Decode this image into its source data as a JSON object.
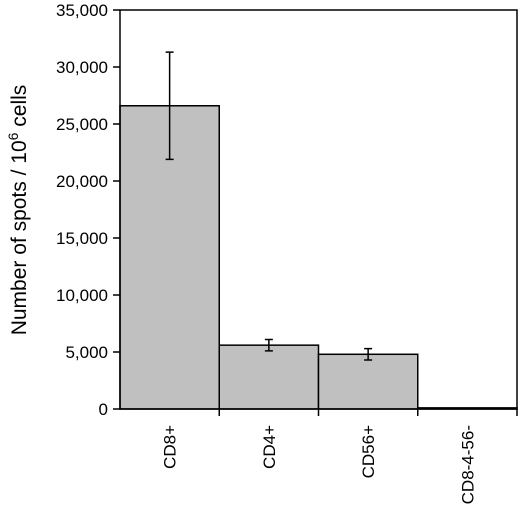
{
  "chart_data": {
    "type": "bar",
    "y_label": [
      "Number of spots / 10",
      "6",
      " cells"
    ],
    "categories": [
      "CD8+",
      "CD4+",
      "CD56+",
      "CD8-4-56-"
    ],
    "values": [
      26600,
      5600,
      4800,
      100
    ],
    "errors": [
      4700,
      500,
      500,
      null
    ],
    "color": "#c0c0c0",
    "ylim": [
      0,
      35000
    ],
    "yticks": [
      0,
      {
        "value": 5000,
        "label": "5,000"
      },
      {
        "value": 10000,
        "label": "10,000"
      },
      {
        "value": 15000,
        "label": "15,000"
      },
      {
        "value": 20000,
        "label": "20,000"
      },
      {
        "value": 25000,
        "label": "25,000"
      },
      {
        "value": 30000,
        "label": "30,000"
      },
      {
        "value": 35000,
        "label": "35,000"
      }
    ]
  }
}
